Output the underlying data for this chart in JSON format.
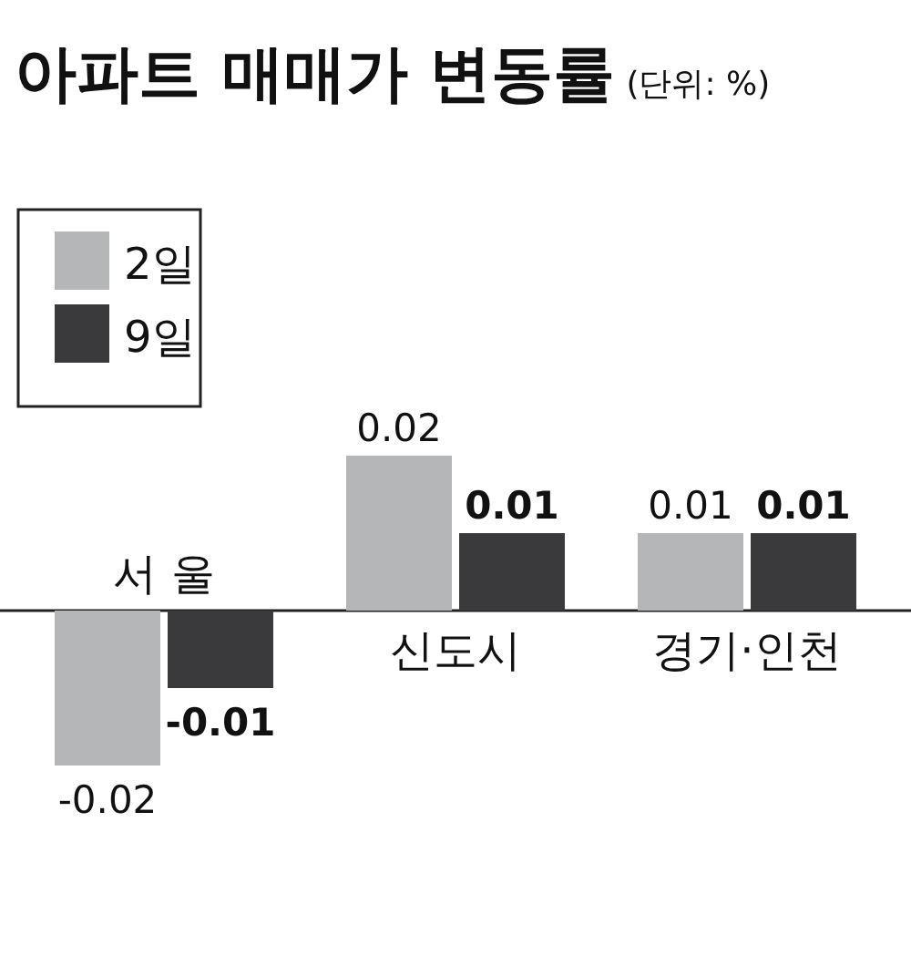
{
  "chart_data": {
    "type": "bar",
    "title": "아파트 매매가 변동률",
    "subtitle": "(단위: %)",
    "categories": [
      "서 울",
      "신도시",
      "경기·인천"
    ],
    "series": [
      {
        "name": "2일",
        "color": "#b5b6b8",
        "values": [
          -0.02,
          0.02,
          0.01
        ]
      },
      {
        "name": "9일",
        "color": "#3a3a3c",
        "values": [
          -0.01,
          0.01,
          0.01
        ]
      }
    ],
    "data_labels": true,
    "legend": "top left"
  }
}
